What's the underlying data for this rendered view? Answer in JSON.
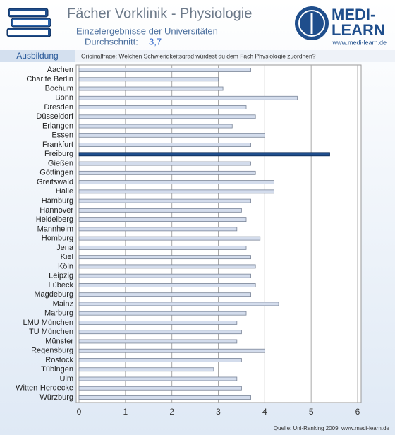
{
  "header": {
    "title": "Fächer Vorklinik - Physiologie",
    "subtitle": "Einzelergebnisse der Universitäten",
    "average_label": "Durchschnitt:",
    "average_value": "3,7",
    "section": "Ausbildung"
  },
  "logo": {
    "line1": "MEDI-",
    "line2": "LEARN",
    "url": "www.medi-learn.de"
  },
  "chart_data": {
    "type": "bar",
    "orientation": "horizontal",
    "title": "Originalfrage: Welchen Schwierigkeitsgrad würdest du dem Fach Physiologie zuordnen?",
    "categories": [
      "Aachen",
      "Charité Berlin",
      "Bochum",
      "Bonn",
      "Dresden",
      "Düsseldorf",
      "Erlangen",
      "Essen",
      "Frankfurt",
      "Freiburg",
      "Gießen",
      "Göttingen",
      "Greifswald",
      "Halle",
      "Hamburg",
      "Hannover",
      "Heidelberg",
      "Mannheim",
      "Homburg",
      "Jena",
      "Kiel",
      "Köln",
      "Leipzig",
      "Lübeck",
      "Magdeburg",
      "Mainz",
      "Marburg",
      "LMU München",
      "TU München",
      "Münster",
      "Regensburg",
      "Rostock",
      "Tübingen",
      "Ulm",
      "Witten-Herdecke",
      "Würzburg"
    ],
    "values": [
      3.7,
      3.0,
      3.1,
      4.7,
      3.6,
      3.8,
      3.3,
      4.0,
      3.7,
      5.4,
      3.7,
      3.8,
      4.2,
      4.2,
      3.7,
      3.5,
      3.6,
      3.4,
      3.9,
      3.6,
      3.7,
      3.8,
      3.7,
      3.8,
      3.7,
      4.3,
      3.6,
      3.4,
      3.5,
      3.4,
      4.0,
      3.5,
      2.9,
      3.4,
      3.5,
      3.7
    ],
    "colors": [
      "#d3dcec",
      "#d3dcec",
      "#d3dcec",
      "#d3dcec",
      "#d3dcec",
      "#d3dcec",
      "#d3dcec",
      "#d3dcec",
      "#d3dcec",
      "#1f4e8c",
      "#d3dcec",
      "#d3dcec",
      "#d3dcec",
      "#d3dcec",
      "#d3dcec",
      "#d3dcec",
      "#d3dcec",
      "#d3dcec",
      "#d3dcec",
      "#d3dcec",
      "#d3dcec",
      "#d3dcec",
      "#d3dcec",
      "#d3dcec",
      "#d3dcec",
      "#d3dcec",
      "#d3dcec",
      "#d3dcec",
      "#d3dcec",
      "#d3dcec",
      "#d3dcec",
      "#d3dcec",
      "#d3dcec",
      "#d3dcec",
      "#d3dcec",
      "#d3dcec"
    ],
    "xlim": [
      0,
      6
    ],
    "xticks": [
      0,
      1,
      2,
      3,
      4,
      5,
      6
    ],
    "grid": true
  },
  "footer": {
    "source": "Quelle: Uni-Ranking 2009, www.medi-learn.de"
  }
}
